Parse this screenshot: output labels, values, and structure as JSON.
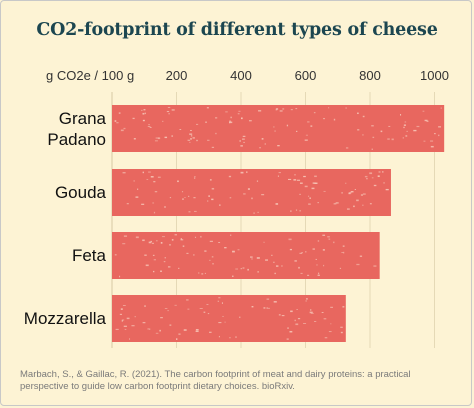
{
  "chart_data": {
    "type": "bar",
    "orientation": "horizontal",
    "title": "CO2-footprint of different types of cheese",
    "xlabel": "g CO2e / 100 g",
    "ylabel": "",
    "xlim": [
      0,
      1050
    ],
    "ticks": [
      "200",
      "400",
      "600",
      "800",
      "1000"
    ],
    "tick_values": [
      200,
      400,
      600,
      800,
      1000
    ],
    "categories": [
      "Grana Padano",
      "Gouda",
      "Feta",
      "Mozzarella"
    ],
    "category_lines": [
      [
        "Grana",
        "Padano"
      ],
      [
        "Gouda"
      ],
      [
        "Feta"
      ],
      [
        "Mozzarella"
      ]
    ],
    "values": [
      1030,
      865,
      830,
      725
    ],
    "bar_color": "#e8675f",
    "background_color": "#fdf3d4",
    "title_color": "#1c4650",
    "grid": true,
    "source": "Marbach, S., & Gaillac, R. (2021). The carbon footprint of meat and dairy proteins: a practical perspective to guide low carbon footprint dietary choices. bioRxiv."
  }
}
